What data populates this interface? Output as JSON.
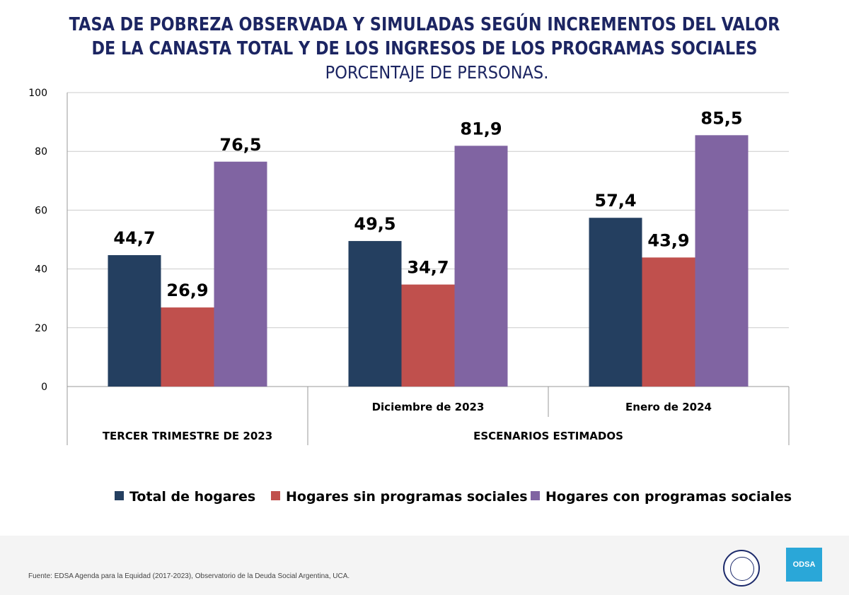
{
  "chart_data": {
    "type": "bar",
    "title": "TASA DE POBREZA OBSERVADA Y SIMULADAS SEGÚN INCREMENTOS DEL VALOR DE LA CANASTA TOTAL Y DE LOS INGRESOS DE LOS PROGRAMAS SOCIALES",
    "subtitle": "PORCENTAJE DE PERSONAS.",
    "categories": [
      "",
      "Diciembre de 2023",
      "Enero de 2024"
    ],
    "category_groups": [
      {
        "label": "TERCER TRIMESTRE DE 2023",
        "span": 1
      },
      {
        "label": "ESCENARIOS ESTIMADOS",
        "span": 2
      }
    ],
    "series": [
      {
        "name": "Total de hogares",
        "color": "#243f60",
        "values": [
          44.7,
          49.5,
          57.4
        ],
        "labels": [
          "44,7",
          "49,5",
          "57,4"
        ]
      },
      {
        "name": "Hogares sin programas sociales",
        "color": "#c0504d",
        "values": [
          26.9,
          34.7,
          43.9
        ],
        "labels": [
          "26,9",
          "34,7",
          "43,9"
        ]
      },
      {
        "name": "Hogares con programas sociales",
        "color": "#8064a2",
        "values": [
          76.5,
          81.9,
          85.5
        ],
        "labels": [
          "76,5",
          "81,9",
          "85,5"
        ]
      }
    ],
    "ylim": [
      0,
      100
    ],
    "yticks": [
      0,
      20,
      40,
      60,
      80,
      100
    ],
    "grid": true,
    "legend": "bottom"
  },
  "footer": {
    "source": "Fuente: EDSA Agenda para la Equidad (2017-2023), Observatorio de la Deuda Social Argentina, UCA.",
    "logo_text": "ODSA"
  }
}
